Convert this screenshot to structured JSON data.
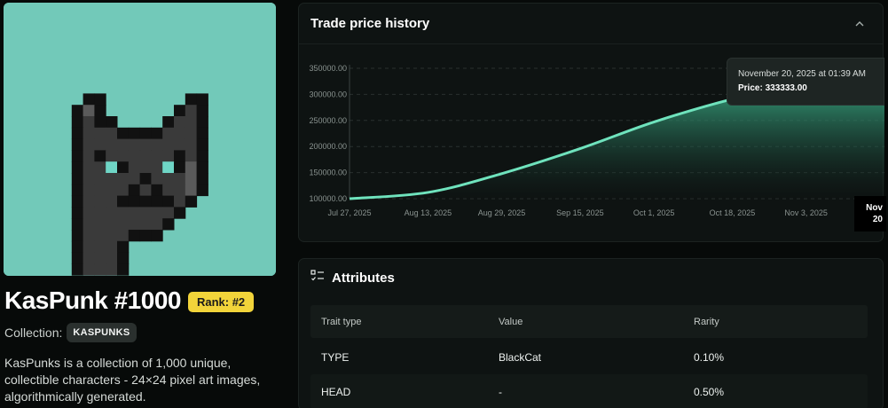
{
  "nft": {
    "title": "KasPunk #1000",
    "rank_label": "Rank: #2",
    "collection_label": "Collection:",
    "collection_name": "KASPUNKS",
    "description": "KasPunks is a collection of 1,000 unique, collectible characters - 24×24 pixel art images, algorithmically generated.",
    "image_alt": "KasPunk #1000 pixel art black cat",
    "image_background": "#72c9b9"
  },
  "chart_panel": {
    "title": "Trade price history",
    "collapse_icon": "chevron-up-icon"
  },
  "chart_data": {
    "type": "area",
    "title": "",
    "xlabel": "",
    "ylabel": "",
    "x_ticks": [
      "Jul 27, 2025",
      "Aug 13, 2025",
      "Aug 29, 2025",
      "Sep 15, 2025",
      "Oct 1, 2025",
      "Oct 18, 2025",
      "Nov 3, 2025"
    ],
    "y_ticks": [
      "100000.00",
      "150000.00",
      "200000.00",
      "250000.00",
      "300000.00",
      "350000.00"
    ],
    "ylim": [
      100000,
      350000
    ],
    "xlim": [
      "2025-07-27",
      "2025-11-20"
    ],
    "grid": true,
    "line_color": "#6fe3bd",
    "series": [
      {
        "points": [
          {
            "x": "2025-07-27",
            "y": 100000
          },
          {
            "x": "2025-08-13",
            "y": 112000
          },
          {
            "x": "2025-08-29",
            "y": 148000
          },
          {
            "x": "2025-09-15",
            "y": 196000
          },
          {
            "x": "2025-10-01",
            "y": 247000
          },
          {
            "x": "2025-10-18",
            "y": 291000
          },
          {
            "x": "2025-11-03",
            "y": 322000
          },
          {
            "x": "2025-11-20",
            "y": 333333
          }
        ]
      }
    ],
    "tooltip": {
      "date": "November 20, 2025 at 01:39 AM",
      "price": "Price: 333333.00"
    },
    "x_cursor_label": [
      "Nov",
      "20"
    ]
  },
  "attributes": {
    "title": "Attributes",
    "icon": "list-checks-icon",
    "columns": [
      "Trait type",
      "Value",
      "Rarity"
    ],
    "rows": [
      {
        "trait": "TYPE",
        "value": "BlackCat",
        "rarity": "0.10%"
      },
      {
        "trait": "HEAD",
        "value": "-",
        "rarity": "0.50%"
      }
    ]
  }
}
